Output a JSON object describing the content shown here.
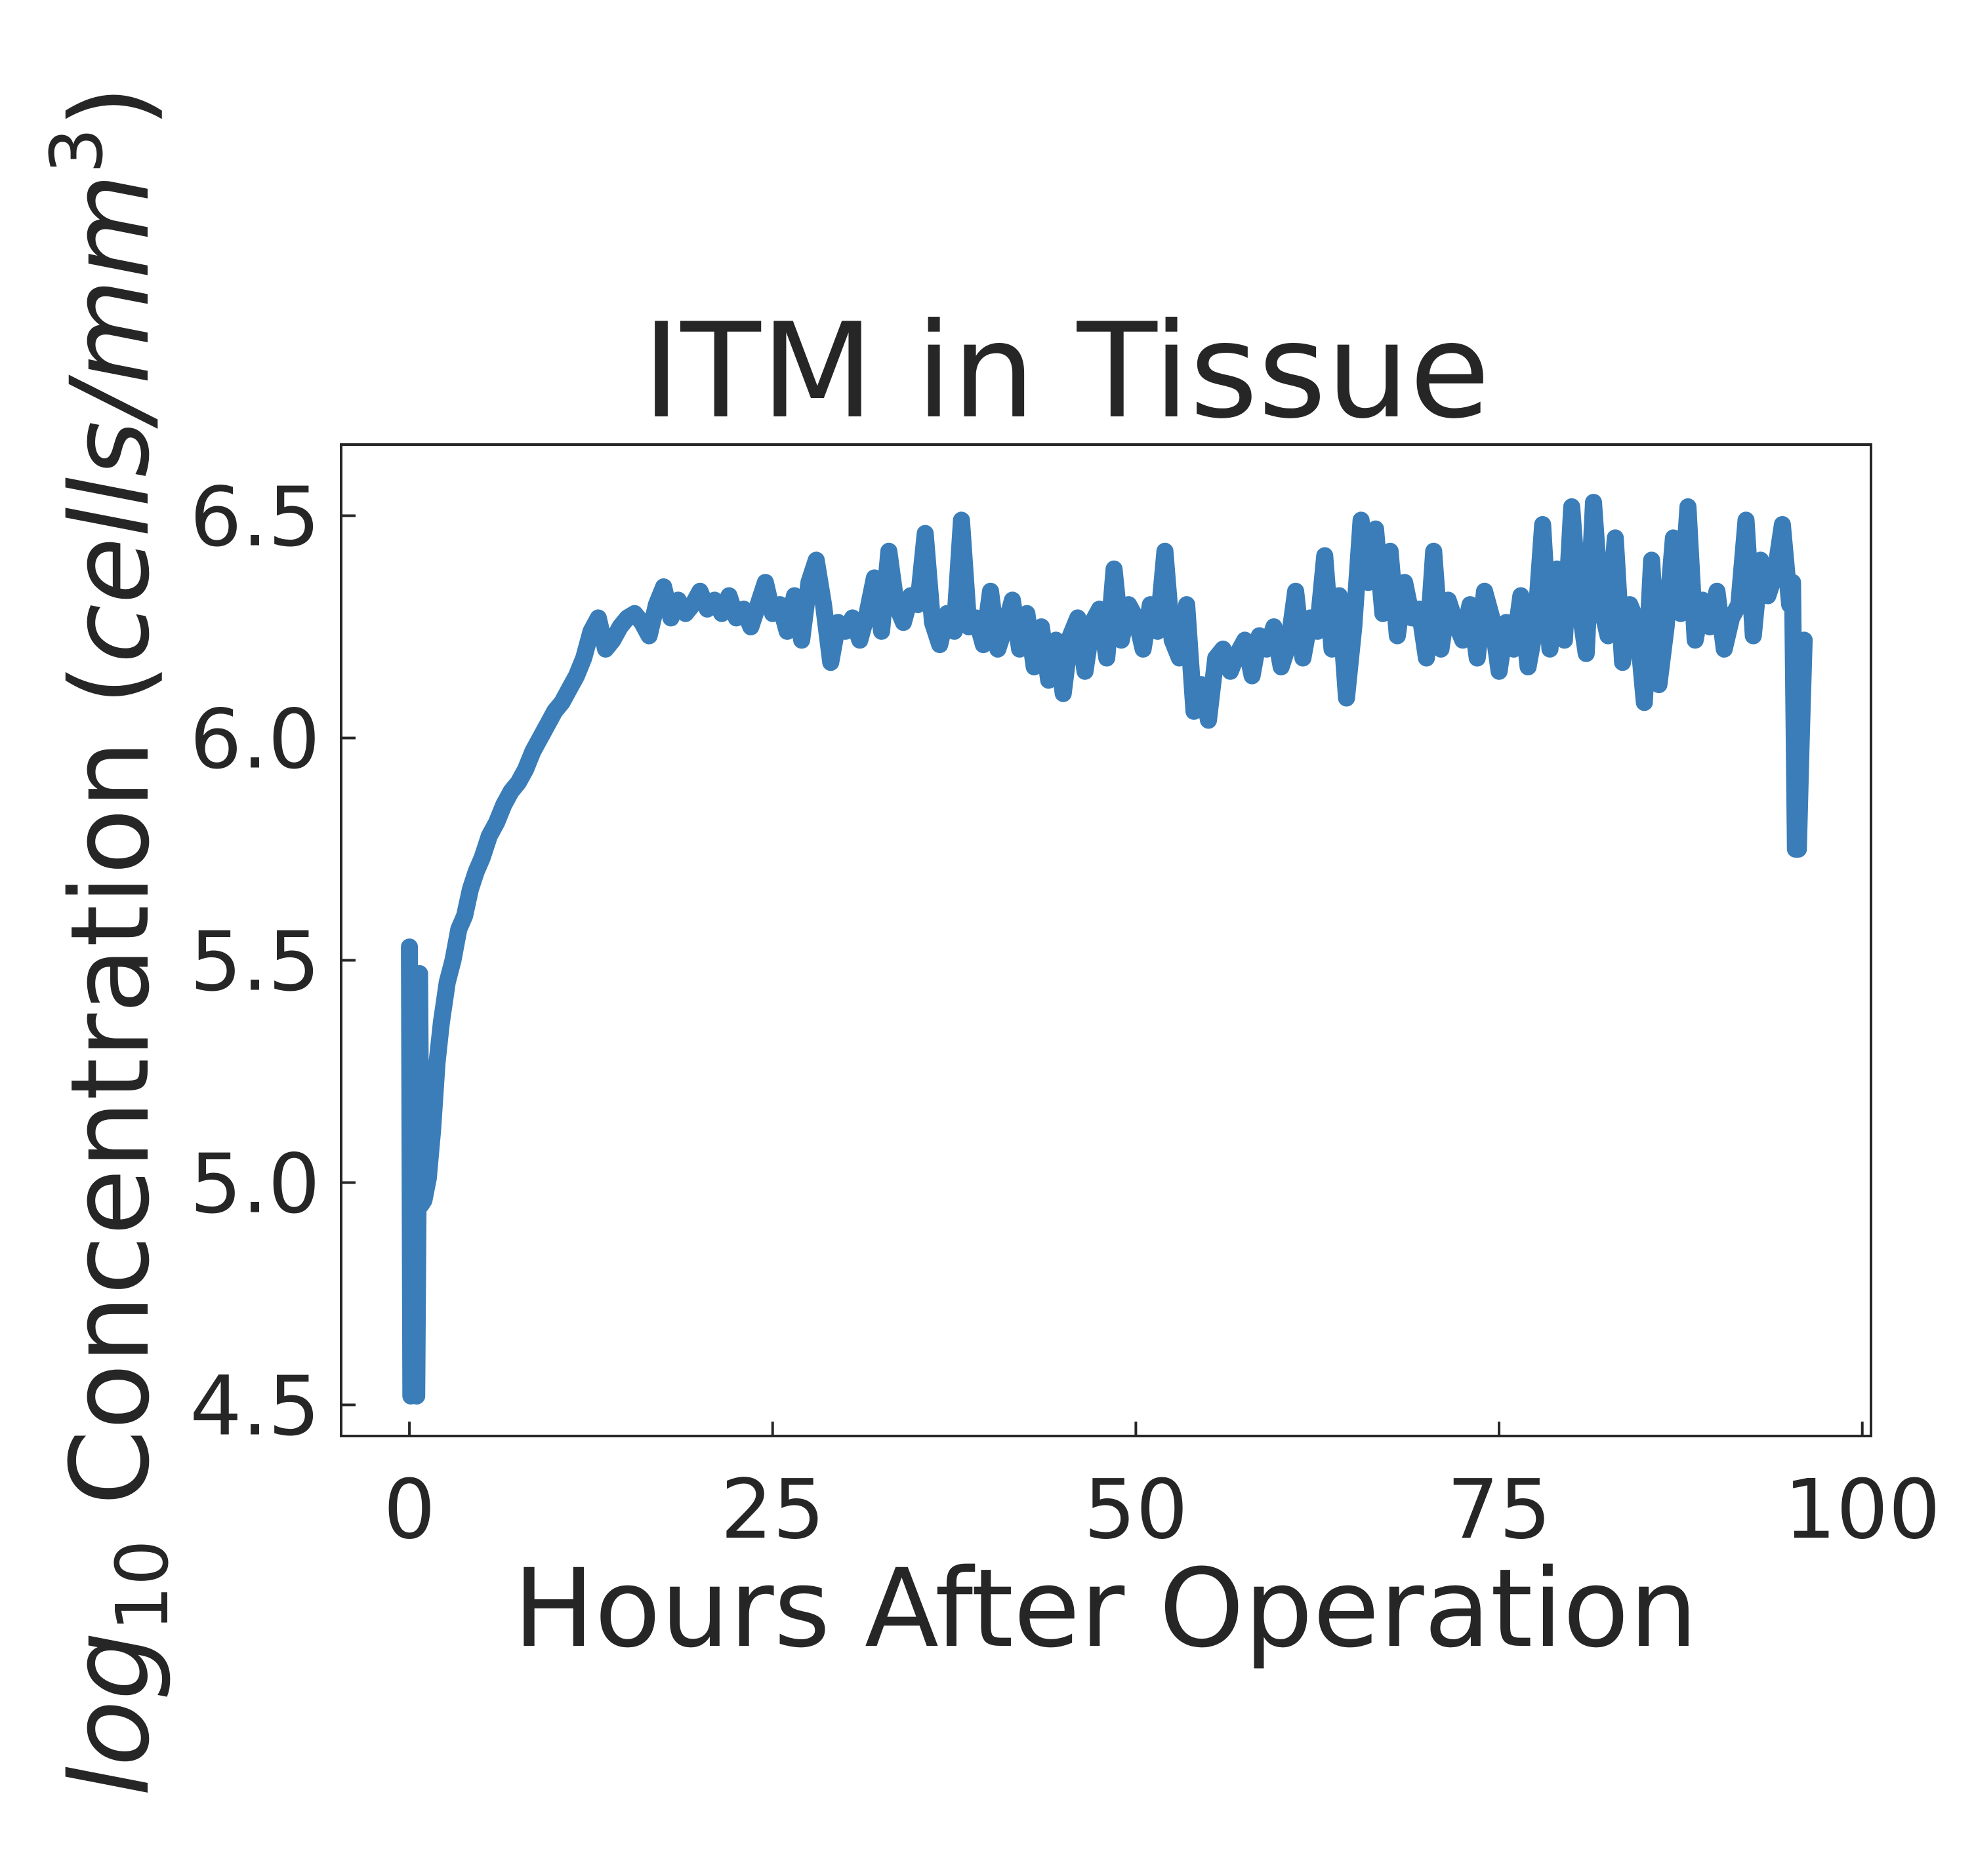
{
  "chart_data": {
    "type": "line",
    "title": "ITM in Tissue",
    "xlabel": "Hours After Operation",
    "ylabel": {
      "prefix": "log",
      "prefix_sub": "10",
      "main": " Concentration (",
      "unit": "cells/mm",
      "unit_sup": "3",
      "suffix": ")"
    },
    "xlim": [
      -4.7,
      100.6
    ],
    "ylim": [
      4.43,
      6.66
    ],
    "xticks": [
      0,
      25,
      50,
      75,
      100
    ],
    "xtick_labels": [
      "0",
      "25",
      "50",
      "75",
      "100"
    ],
    "yticks": [
      4.5,
      5.0,
      5.5,
      6.0,
      6.5
    ],
    "ytick_labels": [
      "4.5",
      "5.0",
      "5.5",
      "6.0",
      "6.5"
    ],
    "grid": false,
    "legend": "none",
    "series": [
      {
        "color": "#3a7db8",
        "x": [
          0,
          0.1,
          0.2,
          0.3,
          0.5,
          0.7,
          0.8,
          1.0,
          1.3,
          1.6,
          1.9,
          2.2,
          2.6,
          3.0,
          3.4,
          3.8,
          4.2,
          4.6,
          5.0,
          5.5,
          6.0,
          6.5,
          7.0,
          7.5,
          8.0,
          8.5,
          9.0,
          9.5,
          10.0,
          10.5,
          11.0,
          11.5,
          12.0,
          12.5,
          13.0,
          13.5,
          14.0,
          14.5,
          15.0,
          15.5,
          16.0,
          16.5,
          17.0,
          17.5,
          18.0,
          18.5,
          19.0,
          19.5,
          20.0,
          20.5,
          21.0,
          21.5,
          22.0,
          22.5,
          23.0,
          23.5,
          24.0,
          24.5,
          25.0,
          25.5,
          26.0,
          26.5,
          27.0,
          27.5,
          28.0,
          28.5,
          29.0,
          29.5,
          30.0,
          30.5,
          31.0,
          31.5,
          32.0,
          32.5,
          33.0,
          33.5,
          34.0,
          34.5,
          35.0,
          35.5,
          36.0,
          36.5,
          37.0,
          37.5,
          38.0,
          38.5,
          39.0,
          39.5,
          40.0,
          40.5,
          41.0,
          41.5,
          42.0,
          42.5,
          43.0,
          43.5,
          44.0,
          44.5,
          45.0,
          45.5,
          46.0,
          46.5,
          47.0,
          47.5,
          48.0,
          48.5,
          49.0,
          49.5,
          50.0,
          50.5,
          51.0,
          51.5,
          52.0,
          52.5,
          53.0,
          53.5,
          54.0,
          54.5,
          55.0,
          55.5,
          56.0,
          56.5,
          57.0,
          57.5,
          58.0,
          58.5,
          59.0,
          59.5,
          60.0,
          60.5,
          61.0,
          61.5,
          62.0,
          62.5,
          63.0,
          63.5,
          64.0,
          64.5,
          65.0,
          65.5,
          66.0,
          66.5,
          67.0,
          67.5,
          68.0,
          68.5,
          69.0,
          69.5,
          70.0,
          70.5,
          71.0,
          71.5,
          72.0,
          72.5,
          73.0,
          73.5,
          74.0,
          74.5,
          75.0,
          75.5,
          76.0,
          76.5,
          77.0,
          77.5,
          78.0,
          78.5,
          79.0,
          79.5,
          80.0,
          80.5,
          81.0,
          81.5,
          82.0,
          82.5,
          83.0,
          83.5,
          84.0,
          84.5,
          85.0,
          85.5,
          86.0,
          86.5,
          87.0,
          87.5,
          88.0,
          88.5,
          89.0,
          89.5,
          90.0,
          90.5,
          91.0,
          91.5,
          92.0,
          92.5,
          93.0,
          93.5,
          94.0,
          94.5,
          95.0,
          95.2,
          95.4,
          95.6,
          95.8,
          96.0
        ],
        "y": [
          5.53,
          4.52,
          5.2,
          4.55,
          4.52,
          5.47,
          4.95,
          4.96,
          5.01,
          5.12,
          5.27,
          5.36,
          5.45,
          5.5,
          5.57,
          5.6,
          5.66,
          5.7,
          5.73,
          5.78,
          5.81,
          5.85,
          5.88,
          5.9,
          5.93,
          5.97,
          6.0,
          6.03,
          6.06,
          6.08,
          6.11,
          6.14,
          6.18,
          6.24,
          6.27,
          6.2,
          6.22,
          6.25,
          6.27,
          6.28,
          6.26,
          6.23,
          6.3,
          6.34,
          6.27,
          6.31,
          6.28,
          6.3,
          6.33,
          6.29,
          6.31,
          6.28,
          6.32,
          6.27,
          6.29,
          6.25,
          6.3,
          6.35,
          6.28,
          6.3,
          6.24,
          6.32,
          6.22,
          6.35,
          6.4,
          6.3,
          6.17,
          6.26,
          6.24,
          6.27,
          6.22,
          6.28,
          6.36,
          6.24,
          6.42,
          6.3,
          6.26,
          6.32,
          6.3,
          6.46,
          6.26,
          6.21,
          6.28,
          6.24,
          6.49,
          6.25,
          6.27,
          6.21,
          6.33,
          6.2,
          6.25,
          6.31,
          6.2,
          6.28,
          6.16,
          6.25,
          6.13,
          6.22,
          6.1,
          6.23,
          6.27,
          6.15,
          6.26,
          6.29,
          6.18,
          6.38,
          6.22,
          6.3,
          6.27,
          6.2,
          6.3,
          6.24,
          6.42,
          6.22,
          6.18,
          6.3,
          6.06,
          6.12,
          6.04,
          6.18,
          6.2,
          6.15,
          6.19,
          6.22,
          6.14,
          6.23,
          6.2,
          6.25,
          6.16,
          6.21,
          6.33,
          6.18,
          6.27,
          6.24,
          6.41,
          6.2,
          6.32,
          6.09,
          6.25,
          6.49,
          6.35,
          6.47,
          6.28,
          6.42,
          6.23,
          6.35,
          6.27,
          6.29,
          6.18,
          6.42,
          6.2,
          6.31,
          6.26,
          6.22,
          6.3,
          6.18,
          6.33,
          6.27,
          6.15,
          6.26,
          6.2,
          6.32,
          6.16,
          6.25,
          6.48,
          6.2,
          6.38,
          6.22,
          6.52,
          6.3,
          6.19,
          6.53,
          6.3,
          6.23,
          6.45,
          6.17,
          6.3,
          6.26,
          6.08,
          6.4,
          6.12,
          6.25,
          6.45,
          6.28,
          6.52,
          6.22,
          6.31,
          6.25,
          6.33,
          6.2,
          6.27,
          6.3,
          6.49,
          6.23,
          6.4,
          6.32,
          6.37,
          6.48,
          6.3,
          6.35,
          5.75,
          5.75,
          6.0,
          6.22
        ]
      }
    ]
  }
}
